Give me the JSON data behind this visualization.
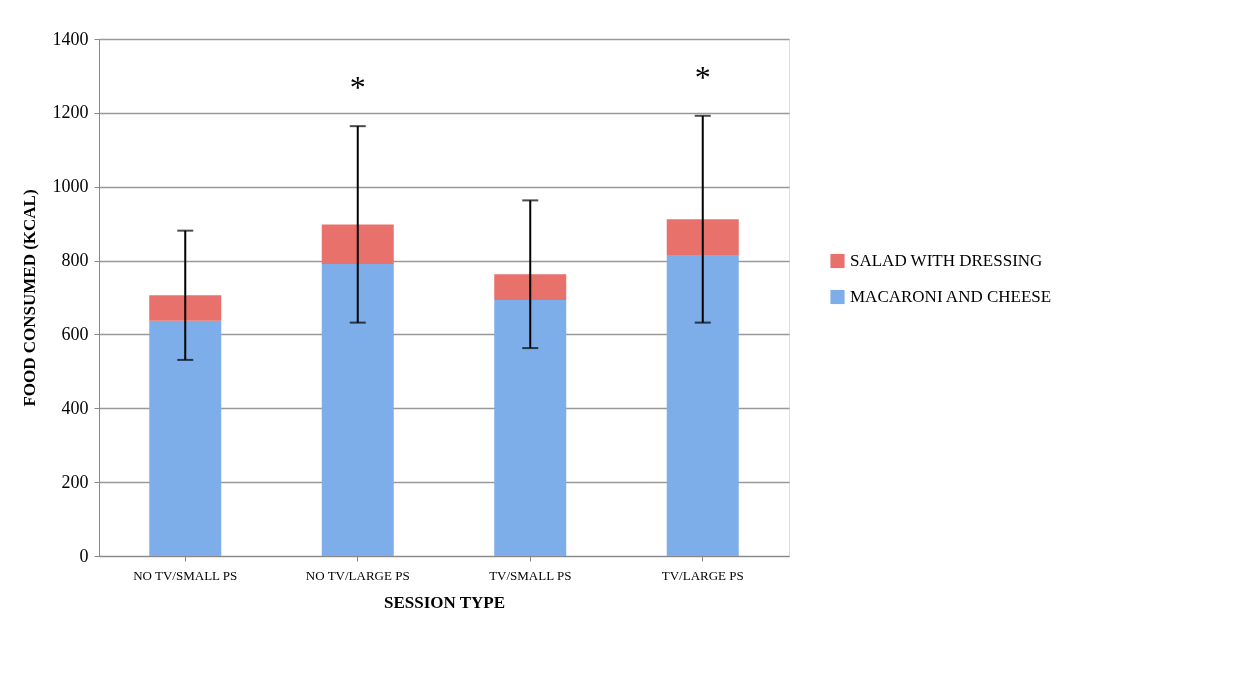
{
  "chart_data": {
    "type": "bar",
    "stacked": true,
    "xlabel": "SESSION TYPE",
    "ylabel": "FOOD CONSUMED (KCAL)",
    "categories": [
      "NO TV/SMALL PS",
      "NO TV/LARGE PS",
      "TV/SMALL PS",
      "TV/LARGE PS"
    ],
    "series": [
      {
        "name": "MACARONI AND CHEESE",
        "color": "#7eaee9",
        "values": [
          637,
          791,
          693,
          815
        ]
      },
      {
        "name": "SALAD WITH DRESSING",
        "color": "#e8716b",
        "values": [
          69,
          107,
          70,
          97
        ],
        "errors": [
          175,
          266,
          200,
          280
        ]
      }
    ],
    "ylim": [
      0,
      1400
    ],
    "yticks": [
      0,
      200,
      400,
      600,
      800,
      1000,
      1200,
      1400
    ],
    "grid": "y",
    "legend": "right",
    "annotations": [
      {
        "text": "*",
        "x": "NO TV/LARGE PS",
        "y": 1164
      },
      {
        "text": "*",
        "x": "TV/LARGE PS",
        "y": 1192
      }
    ]
  }
}
